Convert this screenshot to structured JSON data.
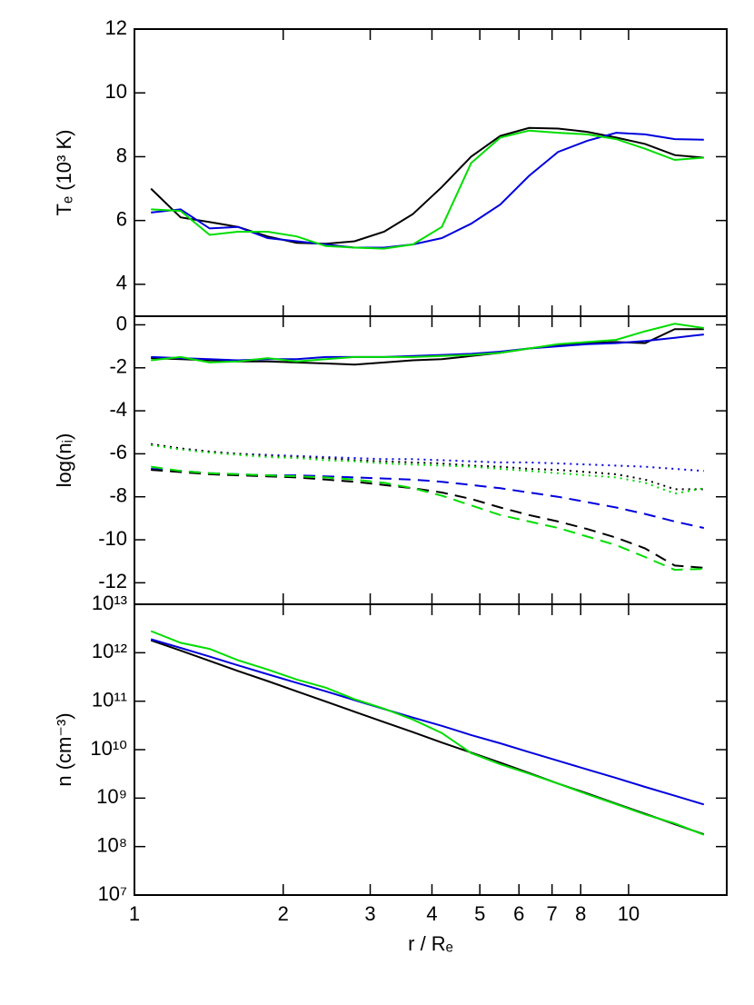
{
  "chart_data": [
    {
      "type": "line",
      "ylabel": "Tₑ (10³ K)",
      "xscale": "log",
      "xlim": [
        1,
        15.8
      ],
      "ylim": [
        3,
        12
      ],
      "yticks": [
        4,
        6,
        8,
        10,
        12
      ],
      "x": [
        1.08,
        1.24,
        1.42,
        1.62,
        1.86,
        2.13,
        2.44,
        2.79,
        3.2,
        3.66,
        4.19,
        4.8,
        5.5,
        6.29,
        7.2,
        8.25,
        9.44,
        10.8,
        12.4,
        14.2
      ],
      "series": [
        {
          "color": "#000000",
          "linestyle": "solid",
          "values": [
            7.0,
            6.1,
            5.95,
            5.8,
            5.5,
            5.3,
            5.27,
            5.35,
            5.65,
            6.2,
            7.05,
            8.0,
            8.65,
            8.9,
            8.88,
            8.78,
            8.6,
            8.4,
            8.05,
            7.97
          ]
        },
        {
          "color": "#0000dd",
          "linestyle": "solid",
          "values": [
            6.25,
            6.35,
            5.75,
            5.8,
            5.45,
            5.35,
            5.25,
            5.15,
            5.15,
            5.25,
            5.45,
            5.9,
            6.5,
            7.4,
            8.15,
            8.5,
            8.75,
            8.7,
            8.55,
            8.53
          ]
        },
        {
          "color": "#00dd00",
          "linestyle": "solid",
          "values": [
            6.35,
            6.3,
            5.55,
            5.65,
            5.65,
            5.5,
            5.2,
            5.15,
            5.12,
            5.25,
            5.8,
            7.8,
            8.6,
            8.82,
            8.75,
            8.7,
            8.55,
            8.25,
            7.9,
            7.97
          ]
        }
      ]
    },
    {
      "type": "line",
      "ylabel": "log(nᵢ)",
      "xscale": "log",
      "xlim": [
        1,
        15.8
      ],
      "ylim": [
        -13,
        0.4
      ],
      "yticks": [
        -12,
        -10,
        -8,
        -6,
        -4,
        -2,
        0
      ],
      "x": [
        1.08,
        1.24,
        1.42,
        1.62,
        1.86,
        2.13,
        2.44,
        2.79,
        3.2,
        3.66,
        4.19,
        4.8,
        5.5,
        6.29,
        7.2,
        8.25,
        9.44,
        10.8,
        12.4,
        14.2
      ],
      "series": [
        {
          "color": "#000000",
          "linestyle": "solid",
          "values": [
            -1.55,
            -1.6,
            -1.65,
            -1.7,
            -1.7,
            -1.75,
            -1.8,
            -1.85,
            -1.75,
            -1.65,
            -1.6,
            -1.45,
            -1.3,
            -1.1,
            -0.95,
            -0.85,
            -0.8,
            -0.85,
            -0.2,
            -0.2
          ]
        },
        {
          "color": "#0000dd",
          "linestyle": "solid",
          "values": [
            -1.5,
            -1.55,
            -1.6,
            -1.65,
            -1.6,
            -1.6,
            -1.5,
            -1.5,
            -1.5,
            -1.45,
            -1.4,
            -1.35,
            -1.25,
            -1.1,
            -1.0,
            -0.9,
            -0.85,
            -0.75,
            -0.6,
            -0.45
          ]
        },
        {
          "color": "#00dd00",
          "linestyle": "solid",
          "values": [
            -1.65,
            -1.5,
            -1.75,
            -1.7,
            -1.55,
            -1.7,
            -1.6,
            -1.5,
            -1.5,
            -1.5,
            -1.45,
            -1.4,
            -1.3,
            -1.1,
            -0.9,
            -0.8,
            -0.7,
            -0.3,
            0.05,
            -0.15
          ]
        },
        {
          "color": "#0000dd",
          "linestyle": "dotted",
          "values": [
            -5.55,
            -5.75,
            -5.9,
            -6.0,
            -6.05,
            -6.1,
            -6.15,
            -6.2,
            -6.25,
            -6.25,
            -6.3,
            -6.35,
            -6.4,
            -6.4,
            -6.45,
            -6.5,
            -6.55,
            -6.6,
            -6.7,
            -6.8
          ]
        },
        {
          "color": "#000000",
          "linestyle": "dotted",
          "values": [
            -5.55,
            -5.75,
            -5.9,
            -6.0,
            -6.1,
            -6.15,
            -6.2,
            -6.3,
            -6.35,
            -6.4,
            -6.45,
            -6.55,
            -6.6,
            -6.7,
            -6.75,
            -6.85,
            -6.95,
            -7.2,
            -7.65,
            -7.65
          ]
        },
        {
          "color": "#00dd00",
          "linestyle": "dotted",
          "values": [
            -5.6,
            -5.8,
            -5.95,
            -6.05,
            -6.15,
            -6.2,
            -6.3,
            -6.35,
            -6.45,
            -6.5,
            -6.55,
            -6.6,
            -6.7,
            -6.8,
            -6.9,
            -7.0,
            -7.1,
            -7.35,
            -7.85,
            -7.6
          ]
        },
        {
          "color": "#0000dd",
          "linestyle": "dashed",
          "values": [
            -6.7,
            -6.8,
            -6.9,
            -6.95,
            -7.0,
            -7.0,
            -7.05,
            -7.1,
            -7.15,
            -7.2,
            -7.3,
            -7.45,
            -7.6,
            -7.8,
            -8.0,
            -8.25,
            -8.5,
            -8.8,
            -9.15,
            -9.45
          ]
        },
        {
          "color": "#000000",
          "linestyle": "dashed",
          "values": [
            -6.75,
            -6.85,
            -6.95,
            -7.0,
            -7.05,
            -7.1,
            -7.2,
            -7.3,
            -7.45,
            -7.6,
            -7.8,
            -8.1,
            -8.5,
            -8.85,
            -9.15,
            -9.5,
            -9.9,
            -10.4,
            -11.2,
            -11.3
          ]
        },
        {
          "color": "#00dd00",
          "linestyle": "dashed",
          "values": [
            -6.6,
            -6.8,
            -6.9,
            -6.95,
            -7.0,
            -7.05,
            -7.1,
            -7.2,
            -7.35,
            -7.6,
            -7.95,
            -8.4,
            -8.85,
            -9.15,
            -9.45,
            -9.85,
            -10.25,
            -10.8,
            -11.4,
            -11.35
          ]
        }
      ]
    },
    {
      "type": "line",
      "ylabel": "n (cm⁻³)",
      "xlabel": "r / Rₑ",
      "xscale": "log",
      "yscale": "log",
      "xlim": [
        1,
        15.8
      ],
      "ylim": [
        10000000.0,
        10000000000000.0
      ],
      "yticks": [
        {
          "value": 10000000.0,
          "label": "10⁷"
        },
        {
          "value": 100000000.0,
          "label": "10⁸"
        },
        {
          "value": 1000000000.0,
          "label": "10⁹"
        },
        {
          "value": 10000000000.0,
          "label": "10¹⁰"
        },
        {
          "value": 100000000000.0,
          "label": "10¹¹"
        },
        {
          "value": 1000000000000.0,
          "label": "10¹²"
        },
        {
          "value": 10000000000000.0,
          "label": "10¹³"
        }
      ],
      "xticks": [
        1,
        2,
        3,
        4,
        5,
        6,
        7,
        8,
        10
      ],
      "x": [
        1.08,
        1.24,
        1.42,
        1.62,
        1.86,
        2.13,
        2.44,
        2.79,
        3.2,
        3.66,
        4.19,
        4.8,
        5.5,
        6.29,
        7.2,
        8.25,
        9.44,
        10.8,
        12.4,
        14.2
      ],
      "series": [
        {
          "color": "#000000",
          "linestyle": "solid",
          "values": [
            1800000000000.0,
            1110000000000.0,
            680000000000.0,
            420000000000.0,
            260000000000.0,
            160000000000.0,
            98000000000.0,
            60500000000.0,
            37000000000.0,
            23000000000.0,
            14000000000.0,
            8700000000.0,
            5400000000.0,
            3300000000.0,
            2000000000.0,
            1250000000.0,
            770000000.0,
            475000000.0,
            290000000.0,
            180000000.0
          ]
        },
        {
          "color": "#0000dd",
          "linestyle": "solid",
          "values": [
            1900000000000.0,
            1260000000000.0,
            830000000000.0,
            550000000000.0,
            360000000000.0,
            240000000000.0,
            160000000000.0,
            105000000000.0,
            69000000000.0,
            46000000000.0,
            31000000000.0,
            20000000000.0,
            13500000000.0,
            8900000000.0,
            5900000000.0,
            3900000000.0,
            2600000000.0,
            1700000000.0,
            1120000000.0,
            740000000.0
          ]
        },
        {
          "color": "#00dd00",
          "linestyle": "solid",
          "values": [
            2800000000000.0,
            1600000000000.0,
            1200000000000.0,
            700000000000.0,
            450000000000.0,
            280000000000.0,
            190000000000.0,
            110000000000.0,
            70000000000.0,
            42000000000.0,
            22000000000.0,
            8500000000.0,
            5000000000.0,
            3200000000.0,
            2000000000.0,
            1200000000.0,
            750000000.0,
            460000000.0,
            300000000.0,
            175000000.0
          ]
        }
      ]
    }
  ]
}
